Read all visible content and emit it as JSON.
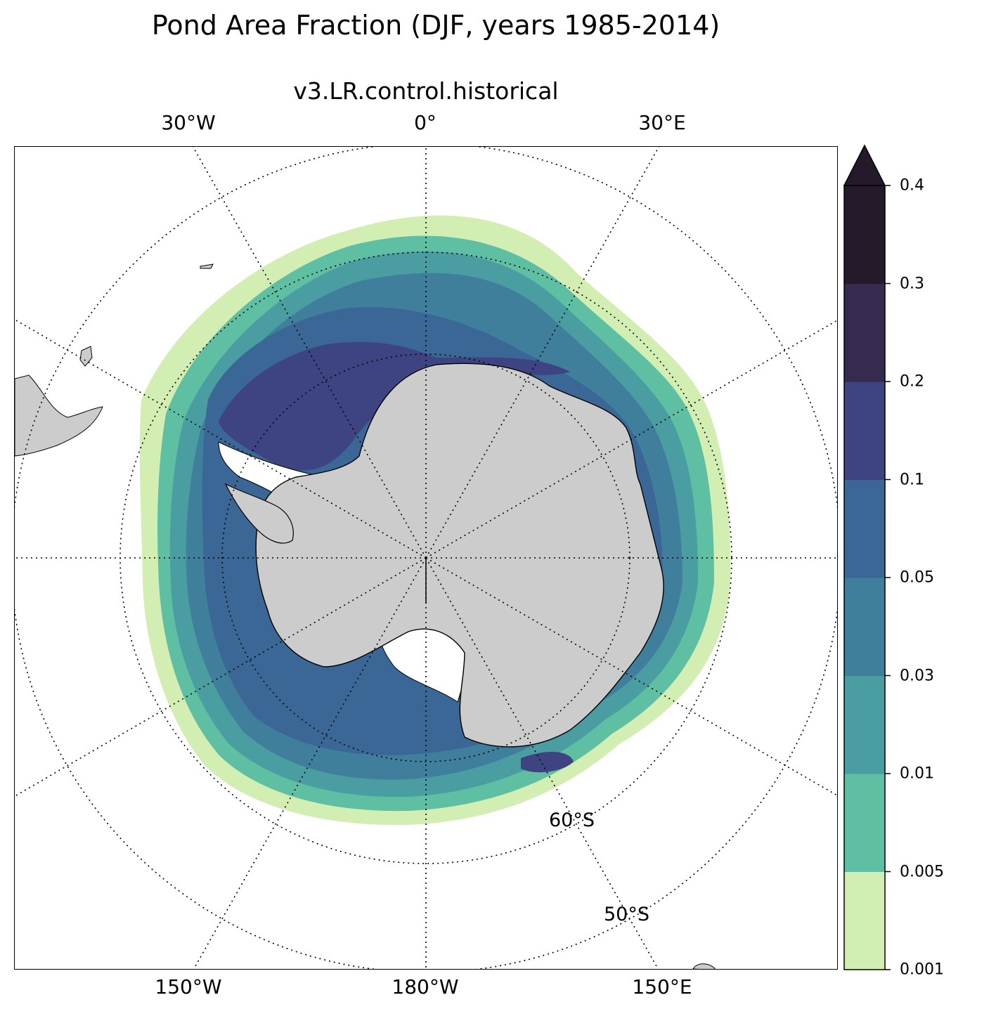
{
  "title": "Pond Area Fraction (DJF, years 1985-2014)",
  "subtitle": "v3.LR.control.historical",
  "map": {
    "projection": "south-polar-stereographic",
    "central_longitude": 180,
    "region": "Antarctica / Southern Ocean",
    "top_lon_labels": [
      "30°W",
      "0°",
      "30°E"
    ],
    "bottom_lon_labels": [
      "150°W",
      "180°W",
      "150°E"
    ],
    "lat_labels": [
      "60°S",
      "50°S"
    ],
    "land_color": "#cccccc",
    "ocean_color": "#ffffff",
    "gridline_style": "dotted"
  },
  "colorbar": {
    "extend": "max",
    "levels": [
      "0.001",
      "0.005",
      "0.01",
      "0.03",
      "0.05",
      "0.1",
      "0.2",
      "0.3",
      "0.4"
    ],
    "colors": [
      "#d3eeb3",
      "#5fbfa3",
      "#4a9da1",
      "#3f7f9b",
      "#3b6797",
      "#3e4381",
      "#362a4f",
      "#251a29"
    ],
    "overflow_color": "#251a29"
  },
  "chart_data": {
    "type": "heatmap",
    "title": "Pond Area Fraction (DJF, years 1985-2014)",
    "subtitle": "v3.LR.control.historical",
    "variable": "Pond Area Fraction",
    "season": "DJF",
    "years": "1985-2014",
    "color_levels": [
      0.001,
      0.005,
      0.01,
      0.03,
      0.05,
      0.1,
      0.2,
      0.3,
      0.4
    ],
    "approx_ring_values": [
      {
        "band": "outer sea-ice edge",
        "range": "0.001-0.005"
      },
      {
        "band": "mid pack",
        "range": "0.01-0.05"
      },
      {
        "band": "inner pack / Weddell & Ross seas",
        "range": "0.05-0.2"
      }
    ]
  }
}
